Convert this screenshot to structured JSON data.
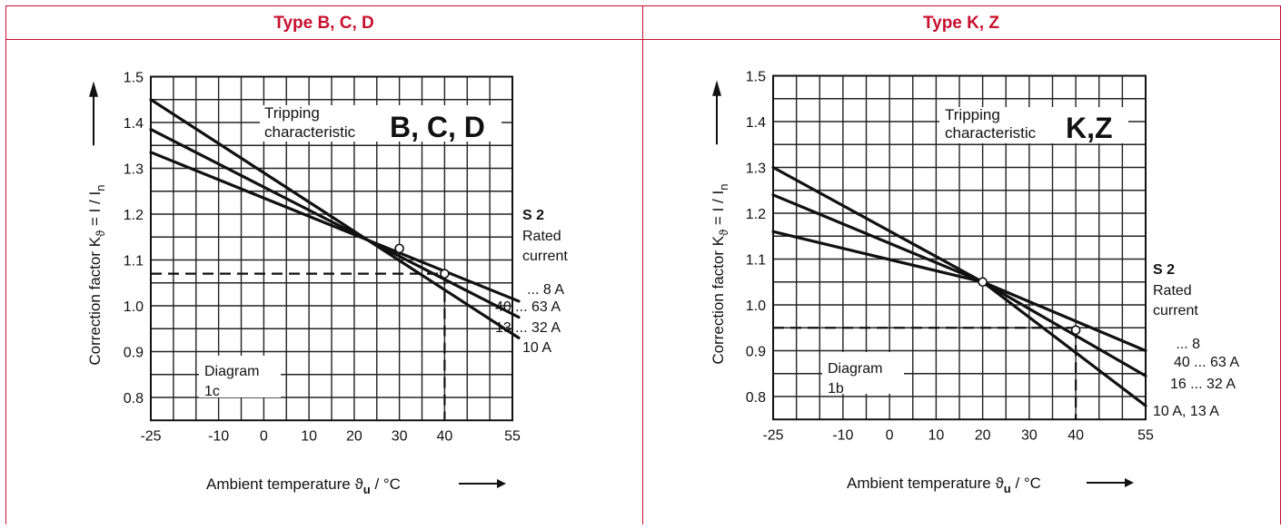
{
  "colors": {
    "accent": "#c8102e",
    "ink": "#111111"
  },
  "headers": [
    "Type B, C, D",
    "Type K, Z"
  ],
  "chart_data": [
    {
      "type": "line",
      "title": "Tripping characteristic",
      "title_big": "B, C, D",
      "ylabel_parts": [
        "Correction factor K",
        "ϑ",
        " = I / I",
        "n"
      ],
      "xlabel_parts": [
        "Ambient temperature ϑ",
        "u",
        " /  °C"
      ],
      "diagram_label": [
        "Diagram",
        "1c"
      ],
      "legend_head": [
        "S 2",
        "Rated",
        "current"
      ],
      "xlim": [
        -25,
        55
      ],
      "ylim": [
        0.75,
        1.5
      ],
      "x_ticks": [
        -25,
        -10,
        0,
        10,
        20,
        30,
        40,
        55
      ],
      "y_ticks": [
        0.8,
        0.9,
        1.0,
        1.1,
        1.2,
        1.3,
        1.4,
        1.5
      ],
      "y_tick_labels": [
        "0.8",
        "0.9",
        "1.0",
        "1.1",
        "1.2",
        "1.3",
        "1.4",
        "1.5"
      ],
      "series": [
        {
          "name": "... 8 A",
          "x": [
            -25,
            55
          ],
          "y": [
            1.335,
            1.01
          ]
        },
        {
          "name": "40 ... 63 A",
          "x": [
            -25,
            55
          ],
          "y": [
            1.385,
            0.975
          ]
        },
        {
          "name": "13 ... 32 A",
          "x": [
            -25,
            55
          ],
          "y": [
            1.45,
            0.93
          ]
        },
        {
          "name": "10 A",
          "x": [],
          "y": []
        }
      ],
      "points": [
        {
          "x": 30,
          "y": 1.125
        },
        {
          "x": 40,
          "y": 1.07
        }
      ],
      "dashed_ref": {
        "x": 40,
        "y": 1.07
      }
    },
    {
      "type": "line",
      "title": "Tripping characteristic",
      "title_big": "K,Z",
      "ylabel_parts": [
        "Correction factor K",
        "ϑ",
        " = I / I",
        "n"
      ],
      "xlabel_parts": [
        "Ambient temperature ϑ",
        "u",
        " / °C"
      ],
      "diagram_label": [
        "Diagram",
        "1b"
      ],
      "legend_head": [
        "S 2",
        "Rated",
        "current"
      ],
      "xlim": [
        -25,
        55
      ],
      "ylim": [
        0.75,
        1.5
      ],
      "x_ticks": [
        -25,
        -10,
        0,
        10,
        20,
        30,
        40,
        55
      ],
      "y_ticks": [
        0.8,
        0.9,
        1.0,
        1.1,
        1.2,
        1.3,
        1.4,
        1.5
      ],
      "y_tick_labels": [
        "0.8",
        "0.9",
        "1.0",
        "1.1",
        "1.2",
        "1.3",
        "1.4",
        "1.5"
      ],
      "series": [
        {
          "name": "... 8",
          "x": [
            -25,
            20,
            55
          ],
          "y": [
            1.16,
            1.05,
            0.9
          ]
        },
        {
          "name": "40 ... 63 A",
          "x": [
            -25,
            20,
            55
          ],
          "y": [
            1.24,
            1.05,
            0.845
          ]
        },
        {
          "name": "16 ... 32 A",
          "x": [
            -25,
            20,
            55
          ],
          "y": [
            1.3,
            1.05,
            0.78
          ]
        },
        {
          "name": "10 A, 13 A",
          "x": [],
          "y": []
        }
      ],
      "points": [
        {
          "x": 20,
          "y": 1.05
        },
        {
          "x": 40,
          "y": 0.945
        }
      ],
      "dashed_ref": {
        "x": 40,
        "y": 0.95
      }
    }
  ]
}
